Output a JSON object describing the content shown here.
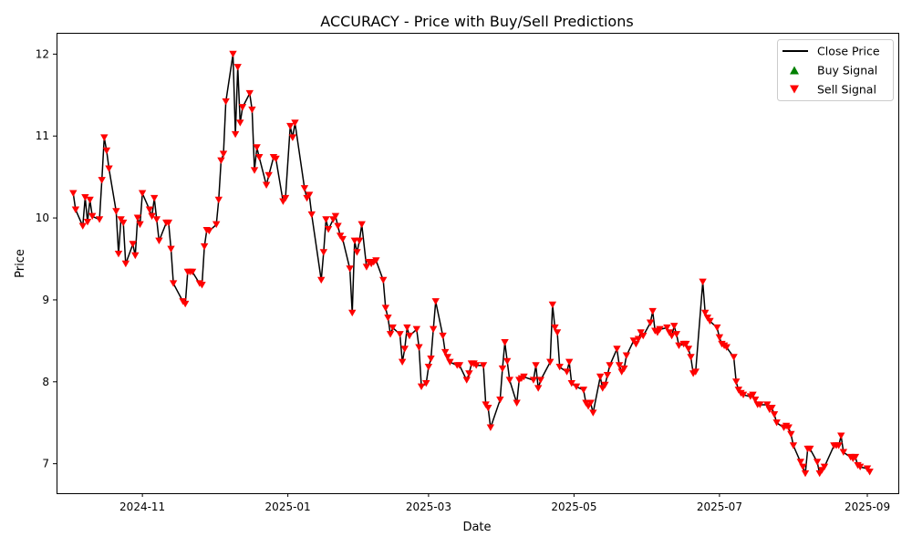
{
  "chart_data": {
    "type": "line",
    "title": "ACCURACY - Price with Buy/Sell Predictions",
    "xlabel": "Date",
    "ylabel": "Price",
    "x_range": [
      "2024-09-26",
      "2025-09-14"
    ],
    "ylim": [
      6.64,
      12.26
    ],
    "x_ticks": [
      {
        "label": "2024-11",
        "date": "2024-11-01"
      },
      {
        "label": "2025-01",
        "date": "2025-01-01"
      },
      {
        "label": "2025-03",
        "date": "2025-03-01"
      },
      {
        "label": "2025-05",
        "date": "2025-05-01"
      },
      {
        "label": "2025-07",
        "date": "2025-07-01"
      },
      {
        "label": "2025-09",
        "date": "2025-09-01"
      }
    ],
    "y_ticks": [
      7,
      8,
      9,
      10,
      11,
      12
    ],
    "grid": false,
    "legend_position": "top-right",
    "legend": [
      {
        "label": "Close Price",
        "kind": "line",
        "color": "#000000"
      },
      {
        "label": "Buy Signal",
        "kind": "triangle-up",
        "color": "#008000"
      },
      {
        "label": "Sell Signal",
        "kind": "triangle-down",
        "color": "#ff0000"
      }
    ],
    "series": [
      {
        "name": "Close Price",
        "color": "#000000",
        "points": [
          [
            "2024-10-03",
            10.3
          ],
          [
            "2024-10-04",
            10.1
          ],
          [
            "2024-10-07",
            9.9
          ],
          [
            "2024-10-08",
            10.25
          ],
          [
            "2024-10-09",
            9.95
          ],
          [
            "2024-10-10",
            10.22
          ],
          [
            "2024-10-11",
            10.02
          ],
          [
            "2024-10-14",
            9.98
          ],
          [
            "2024-10-15",
            10.46
          ],
          [
            "2024-10-16",
            10.98
          ],
          [
            "2024-10-17",
            10.82
          ],
          [
            "2024-10-18",
            10.6
          ],
          [
            "2024-10-21",
            10.08
          ],
          [
            "2024-10-22",
            9.56
          ],
          [
            "2024-10-23",
            9.98
          ],
          [
            "2024-10-24",
            9.94
          ],
          [
            "2024-10-25",
            9.44
          ],
          [
            "2024-10-28",
            9.68
          ],
          [
            "2024-10-29",
            9.54
          ],
          [
            "2024-10-30",
            10.0
          ],
          [
            "2024-10-31",
            9.92
          ],
          [
            "2024-11-01",
            10.3
          ],
          [
            "2024-11-04",
            10.1
          ],
          [
            "2024-11-05",
            10.02
          ],
          [
            "2024-11-06",
            10.24
          ],
          [
            "2024-11-07",
            9.98
          ],
          [
            "2024-11-08",
            9.72
          ],
          [
            "2024-11-11",
            9.94
          ],
          [
            "2024-11-12",
            9.94
          ],
          [
            "2024-11-13",
            9.62
          ],
          [
            "2024-11-14",
            9.2
          ],
          [
            "2024-11-18",
            8.98
          ],
          [
            "2024-11-19",
            8.95
          ],
          [
            "2024-11-20",
            9.34
          ],
          [
            "2024-11-21",
            9.34
          ],
          [
            "2024-11-22",
            9.34
          ],
          [
            "2024-11-25",
            9.2
          ],
          [
            "2024-11-26",
            9.18
          ],
          [
            "2024-11-27",
            9.65
          ],
          [
            "2024-11-28",
            9.85
          ],
          [
            "2024-11-29",
            9.84
          ],
          [
            "2024-12-02",
            9.92
          ],
          [
            "2024-12-03",
            10.22
          ],
          [
            "2024-12-04",
            10.7
          ],
          [
            "2024-12-05",
            10.78
          ],
          [
            "2024-12-06",
            11.42
          ],
          [
            "2024-12-09",
            12.0
          ],
          [
            "2024-12-10",
            11.02
          ],
          [
            "2024-12-11",
            11.84
          ],
          [
            "2024-12-12",
            11.16
          ],
          [
            "2024-12-13",
            11.35
          ],
          [
            "2024-12-16",
            11.52
          ],
          [
            "2024-12-17",
            11.32
          ],
          [
            "2024-12-18",
            10.58
          ],
          [
            "2024-12-19",
            10.86
          ],
          [
            "2024-12-20",
            10.74
          ],
          [
            "2024-12-23",
            10.4
          ],
          [
            "2024-12-24",
            10.52
          ],
          [
            "2024-12-26",
            10.74
          ],
          [
            "2024-12-27",
            10.72
          ],
          [
            "2024-12-30",
            10.2
          ],
          [
            "2024-12-31",
            10.24
          ],
          [
            "2025-01-02",
            11.12
          ],
          [
            "2025-01-03",
            10.98
          ],
          [
            "2025-01-04",
            11.16
          ],
          [
            "2025-01-08",
            10.36
          ],
          [
            "2025-01-09",
            10.24
          ],
          [
            "2025-01-10",
            10.28
          ],
          [
            "2025-01-11",
            10.04
          ],
          [
            "2025-01-15",
            9.24
          ],
          [
            "2025-01-16",
            9.58
          ],
          [
            "2025-01-17",
            9.98
          ],
          [
            "2025-01-18",
            9.86
          ],
          [
            "2025-01-20",
            9.98
          ],
          [
            "2025-01-21",
            10.02
          ],
          [
            "2025-01-22",
            9.9
          ],
          [
            "2025-01-23",
            9.78
          ],
          [
            "2025-01-24",
            9.74
          ],
          [
            "2025-01-27",
            9.38
          ],
          [
            "2025-01-28",
            8.84
          ],
          [
            "2025-01-29",
            9.72
          ],
          [
            "2025-01-30",
            9.58
          ],
          [
            "2025-01-31",
            9.72
          ],
          [
            "2025-02-01",
            9.92
          ],
          [
            "2025-02-03",
            9.4
          ],
          [
            "2025-02-04",
            9.46
          ],
          [
            "2025-02-05",
            9.44
          ],
          [
            "2025-02-06",
            9.46
          ],
          [
            "2025-02-07",
            9.48
          ],
          [
            "2025-02-10",
            9.24
          ],
          [
            "2025-02-11",
            8.9
          ],
          [
            "2025-02-12",
            8.78
          ],
          [
            "2025-02-13",
            8.58
          ],
          [
            "2025-02-14",
            8.66
          ],
          [
            "2025-02-17",
            8.58
          ],
          [
            "2025-02-18",
            8.24
          ],
          [
            "2025-02-19",
            8.4
          ],
          [
            "2025-02-20",
            8.66
          ],
          [
            "2025-02-21",
            8.56
          ],
          [
            "2025-02-24",
            8.64
          ],
          [
            "2025-02-25",
            8.42
          ],
          [
            "2025-02-26",
            7.94
          ],
          [
            "2025-02-28",
            7.98
          ],
          [
            "2025-03-01",
            8.18
          ],
          [
            "2025-03-02",
            8.28
          ],
          [
            "2025-03-03",
            8.64
          ],
          [
            "2025-03-04",
            8.98
          ],
          [
            "2025-03-07",
            8.56
          ],
          [
            "2025-03-08",
            8.36
          ],
          [
            "2025-03-09",
            8.3
          ],
          [
            "2025-03-10",
            8.24
          ],
          [
            "2025-03-13",
            8.2
          ],
          [
            "2025-03-14",
            8.2
          ],
          [
            "2025-03-17",
            8.02
          ],
          [
            "2025-03-18",
            8.1
          ],
          [
            "2025-03-19",
            8.22
          ],
          [
            "2025-03-20",
            8.22
          ],
          [
            "2025-03-21",
            8.2
          ],
          [
            "2025-03-24",
            8.2
          ],
          [
            "2025-03-25",
            7.72
          ],
          [
            "2025-03-26",
            7.68
          ],
          [
            "2025-03-27",
            7.44
          ],
          [
            "2025-03-31",
            7.78
          ],
          [
            "2025-04-01",
            8.16
          ],
          [
            "2025-04-02",
            8.48
          ],
          [
            "2025-04-03",
            8.25
          ],
          [
            "2025-04-04",
            8.02
          ],
          [
            "2025-04-07",
            7.74
          ],
          [
            "2025-04-08",
            8.02
          ],
          [
            "2025-04-09",
            8.04
          ],
          [
            "2025-04-10",
            8.06
          ],
          [
            "2025-04-14",
            8.02
          ],
          [
            "2025-04-15",
            8.2
          ],
          [
            "2025-04-16",
            7.92
          ],
          [
            "2025-04-17",
            8.02
          ],
          [
            "2025-04-21",
            8.24
          ],
          [
            "2025-04-22",
            8.94
          ],
          [
            "2025-04-23",
            8.66
          ],
          [
            "2025-04-24",
            8.6
          ],
          [
            "2025-04-25",
            8.18
          ],
          [
            "2025-04-28",
            8.12
          ],
          [
            "2025-04-29",
            8.24
          ],
          [
            "2025-04-30",
            7.98
          ],
          [
            "2025-05-02",
            7.94
          ],
          [
            "2025-05-05",
            7.9
          ],
          [
            "2025-05-06",
            7.74
          ],
          [
            "2025-05-07",
            7.7
          ],
          [
            "2025-05-08",
            7.74
          ],
          [
            "2025-05-09",
            7.62
          ],
          [
            "2025-05-12",
            8.06
          ],
          [
            "2025-05-13",
            7.92
          ],
          [
            "2025-05-14",
            7.96
          ],
          [
            "2025-05-15",
            8.08
          ],
          [
            "2025-05-16",
            8.2
          ],
          [
            "2025-05-19",
            8.4
          ],
          [
            "2025-05-20",
            8.2
          ],
          [
            "2025-05-21",
            8.12
          ],
          [
            "2025-05-22",
            8.16
          ],
          [
            "2025-05-23",
            8.32
          ],
          [
            "2025-05-26",
            8.5
          ],
          [
            "2025-05-27",
            8.46
          ],
          [
            "2025-05-28",
            8.52
          ],
          [
            "2025-05-29",
            8.6
          ],
          [
            "2025-05-30",
            8.56
          ],
          [
            "2025-06-02",
            8.72
          ],
          [
            "2025-06-03",
            8.86
          ],
          [
            "2025-06-04",
            8.62
          ],
          [
            "2025-06-05",
            8.6
          ],
          [
            "2025-06-06",
            8.64
          ],
          [
            "2025-06-09",
            8.66
          ],
          [
            "2025-06-10",
            8.6
          ],
          [
            "2025-06-11",
            8.56
          ],
          [
            "2025-06-12",
            8.68
          ],
          [
            "2025-06-13",
            8.58
          ],
          [
            "2025-06-14",
            8.44
          ],
          [
            "2025-06-16",
            8.46
          ],
          [
            "2025-06-17",
            8.46
          ],
          [
            "2025-06-18",
            8.4
          ],
          [
            "2025-06-19",
            8.3
          ],
          [
            "2025-06-20",
            8.1
          ],
          [
            "2025-06-21",
            8.12
          ],
          [
            "2025-06-24",
            9.22
          ],
          [
            "2025-06-25",
            8.84
          ],
          [
            "2025-06-26",
            8.78
          ],
          [
            "2025-06-27",
            8.74
          ],
          [
            "2025-06-30",
            8.66
          ],
          [
            "2025-07-01",
            8.54
          ],
          [
            "2025-07-02",
            8.46
          ],
          [
            "2025-07-03",
            8.44
          ],
          [
            "2025-07-04",
            8.42
          ],
          [
            "2025-07-07",
            8.3
          ],
          [
            "2025-07-08",
            8.0
          ],
          [
            "2025-07-09",
            7.9
          ],
          [
            "2025-07-10",
            7.86
          ],
          [
            "2025-07-11",
            7.84
          ],
          [
            "2025-07-14",
            7.82
          ],
          [
            "2025-07-15",
            7.84
          ],
          [
            "2025-07-16",
            7.78
          ],
          [
            "2025-07-17",
            7.72
          ],
          [
            "2025-07-18",
            7.72
          ],
          [
            "2025-07-21",
            7.72
          ],
          [
            "2025-07-22",
            7.66
          ],
          [
            "2025-07-23",
            7.68
          ],
          [
            "2025-07-24",
            7.6
          ],
          [
            "2025-07-25",
            7.5
          ],
          [
            "2025-07-28",
            7.44
          ],
          [
            "2025-07-29",
            7.46
          ],
          [
            "2025-07-30",
            7.44
          ],
          [
            "2025-07-31",
            7.36
          ],
          [
            "2025-08-01",
            7.22
          ],
          [
            "2025-08-04",
            7.02
          ],
          [
            "2025-08-05",
            6.96
          ],
          [
            "2025-08-06",
            6.88
          ],
          [
            "2025-08-07",
            7.18
          ],
          [
            "2025-08-08",
            7.18
          ],
          [
            "2025-08-11",
            7.02
          ],
          [
            "2025-08-12",
            6.88
          ],
          [
            "2025-08-13",
            6.92
          ],
          [
            "2025-08-14",
            6.96
          ],
          [
            "2025-08-18",
            7.22
          ],
          [
            "2025-08-19",
            7.22
          ],
          [
            "2025-08-20",
            7.22
          ],
          [
            "2025-08-21",
            7.34
          ],
          [
            "2025-08-22",
            7.14
          ],
          [
            "2025-08-25",
            7.08
          ],
          [
            "2025-08-26",
            7.06
          ],
          [
            "2025-08-27",
            7.08
          ],
          [
            "2025-08-28",
            6.98
          ],
          [
            "2025-08-29",
            6.96
          ],
          [
            "2025-09-01",
            6.94
          ],
          [
            "2025-09-02",
            6.9
          ]
        ]
      },
      {
        "name": "Buy Signal",
        "color": "#008000",
        "marker": "triangle-up",
        "points": []
      },
      {
        "name": "Sell Signal",
        "color": "#ff0000",
        "marker": "triangle-down",
        "points": "all Close Price points"
      }
    ]
  }
}
